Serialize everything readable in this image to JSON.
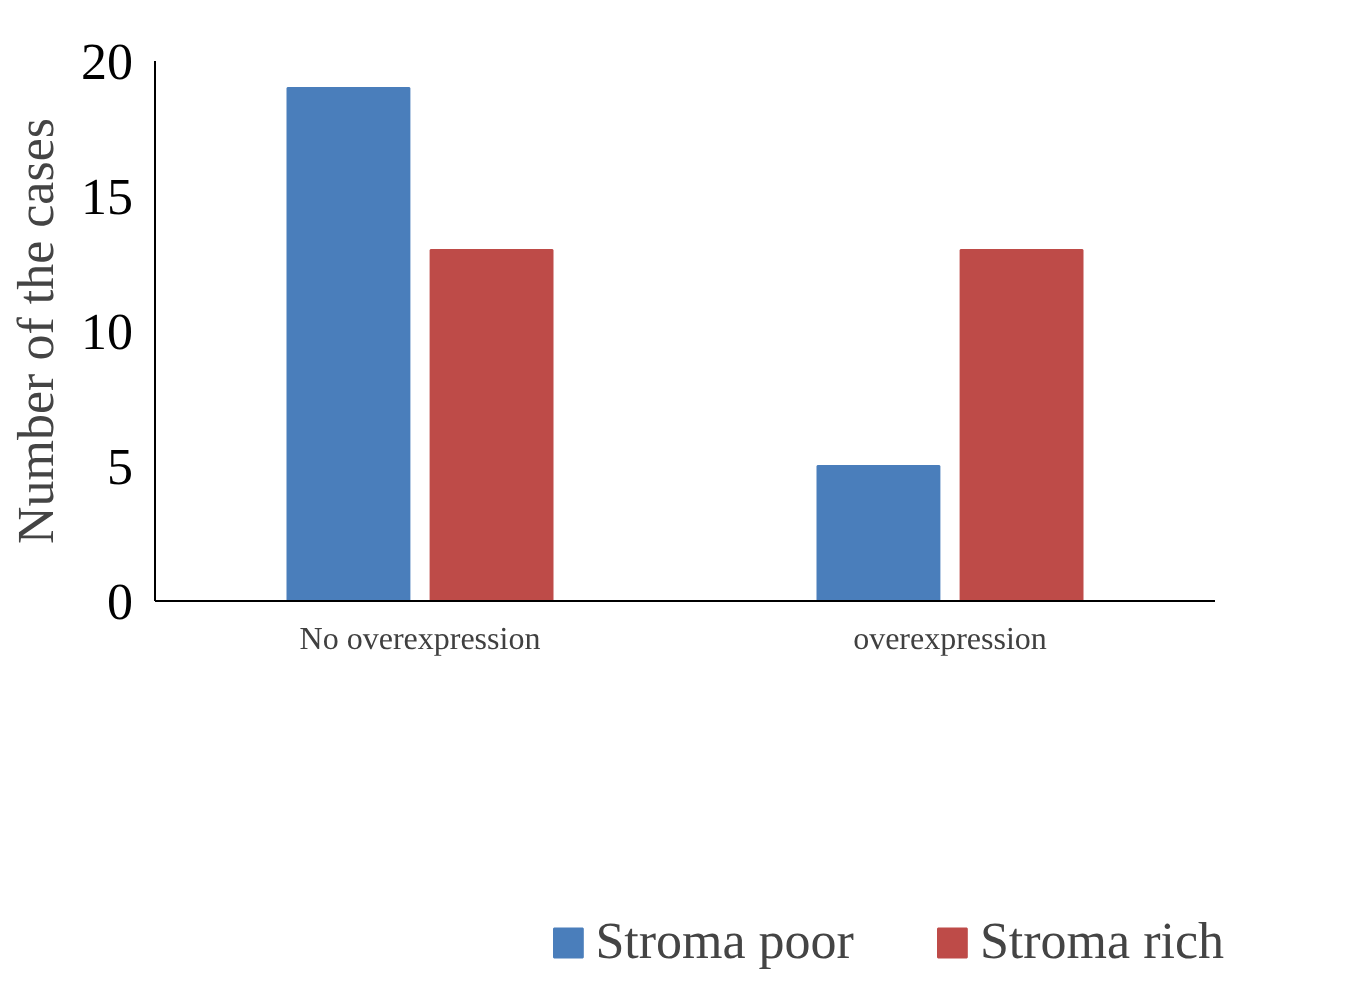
{
  "chart_data": {
    "type": "bar",
    "ylabel": "Number of the cases",
    "categories": [
      "No overexpression",
      "overexpression"
    ],
    "series": [
      {
        "name": "Stroma poor",
        "color": "#4a7ebb",
        "values": [
          19,
          5
        ]
      },
      {
        "name": "Stroma rich",
        "color": "#be4b48",
        "values": [
          13,
          13
        ]
      }
    ],
    "ylim": [
      0,
      20
    ],
    "yticks": [
      0,
      5,
      10,
      15,
      20
    ],
    "grid": false,
    "legend": "bottom"
  }
}
